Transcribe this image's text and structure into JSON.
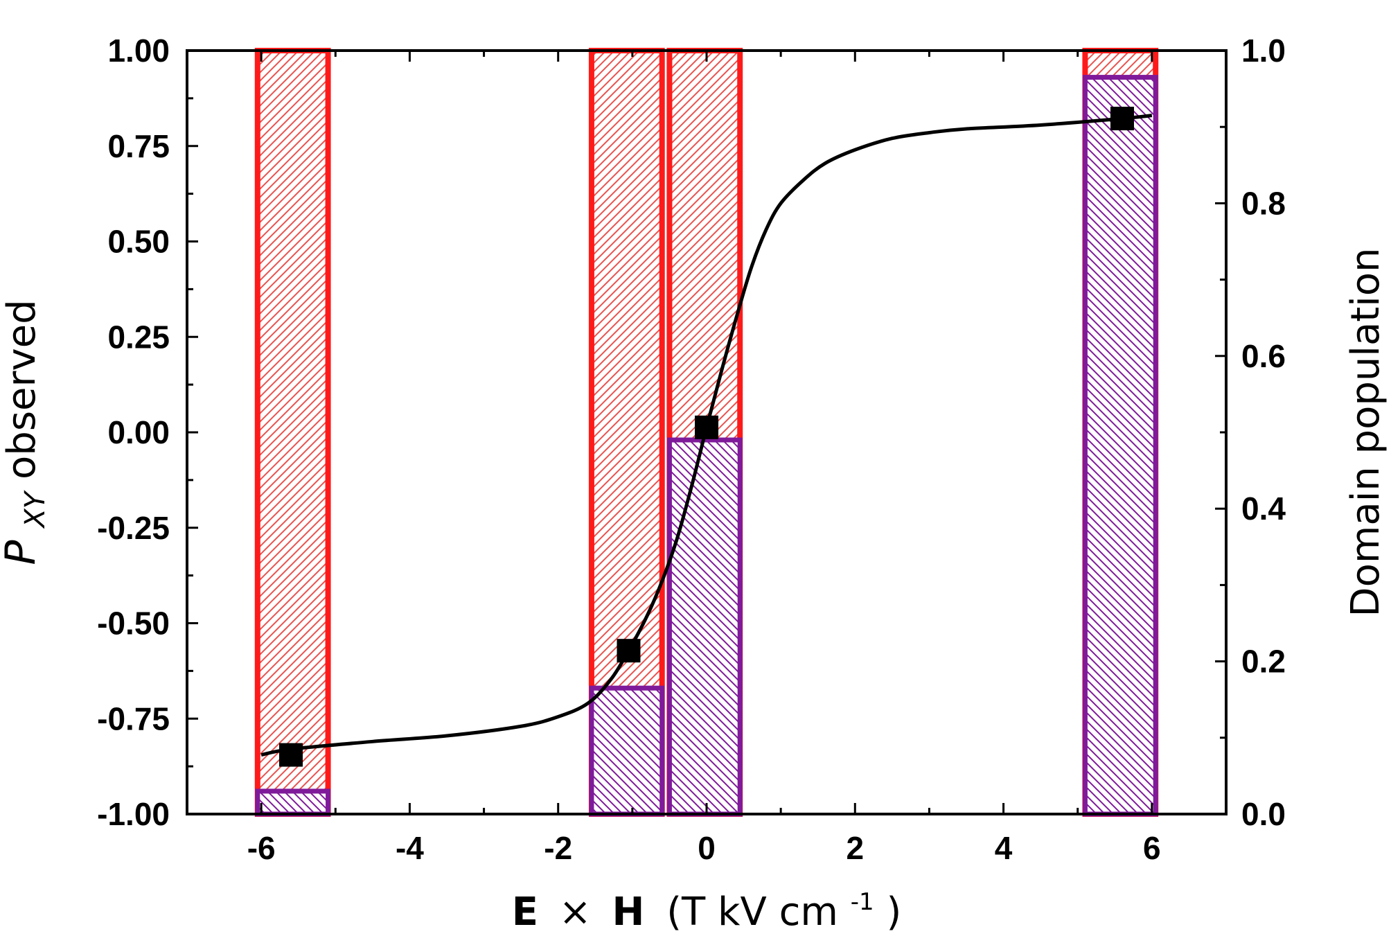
{
  "chart_data": {
    "type": "bar",
    "xlabel": {
      "bold_part_1": "E",
      "operator": "×",
      "bold_part_2": "H",
      "units_open": "(T kV cm",
      "units_exponent": "-1",
      "units_close": " )"
    },
    "ylabel": {
      "symbol": "P",
      "subscript": "XY",
      "rest": " observed"
    },
    "y2label": "Domain population",
    "xlim": [
      -7,
      7
    ],
    "ylim": [
      -1.0,
      1.0
    ],
    "y2lim": [
      0.0,
      1.0
    ],
    "x_ticks": [
      "-6",
      "-4",
      "-2",
      "0",
      "2",
      "4",
      "6"
    ],
    "y_ticks": [
      "1.00",
      "0.75",
      "0.50",
      "0.25",
      "0.00",
      "-0.25",
      "-0.50",
      "-0.75",
      "-1.00"
    ],
    "y2_ticks": [
      "1.0",
      "0.8",
      "0.6",
      "0.4",
      "0.2",
      "0.0"
    ],
    "colors": {
      "red_bar": "#ff1a1a",
      "red_hatch": "#e8524f",
      "purple_bar": "#7f1a9a",
      "purple_hatch": "#7f1a9a",
      "curve": "#000000",
      "marker": "#000000"
    },
    "bars": [
      {
        "x_left": -6.05,
        "x_right": -5.1,
        "total": 1.0,
        "purple": 0.03
      },
      {
        "x_left": -1.55,
        "x_right": -0.6,
        "total": 1.0,
        "purple": 0.165
      },
      {
        "x_left": -0.5,
        "x_right": 0.45,
        "total": 1.0,
        "purple": 0.49
      },
      {
        "x_left": 5.1,
        "x_right": 6.05,
        "total": 1.0,
        "purple": 0.965
      }
    ],
    "series": [
      {
        "type": "scatter",
        "x": [
          -5.6,
          -1.05,
          0.0,
          5.6
        ],
        "y": [
          -0.845,
          -0.572,
          0.013,
          0.822
        ]
      },
      {
        "type": "line",
        "x": [
          -6.0,
          -5.6,
          -4.5,
          -3.5,
          -2.5,
          -2.0,
          -1.6,
          -1.3,
          -1.05,
          -0.8,
          -0.6,
          -0.4,
          -0.2,
          0.0,
          0.2,
          0.4,
          0.6,
          0.8,
          1.0,
          1.3,
          1.6,
          2.0,
          2.5,
          3.0,
          3.5,
          4.5,
          5.6,
          6.0
        ],
        "y": [
          -0.845,
          -0.83,
          -0.81,
          -0.795,
          -0.77,
          -0.745,
          -0.71,
          -0.65,
          -0.572,
          -0.48,
          -0.39,
          -0.28,
          -0.14,
          0.013,
          0.16,
          0.3,
          0.43,
          0.53,
          0.6,
          0.66,
          0.705,
          0.74,
          0.77,
          0.785,
          0.795,
          0.805,
          0.822,
          0.83
        ]
      }
    ]
  }
}
